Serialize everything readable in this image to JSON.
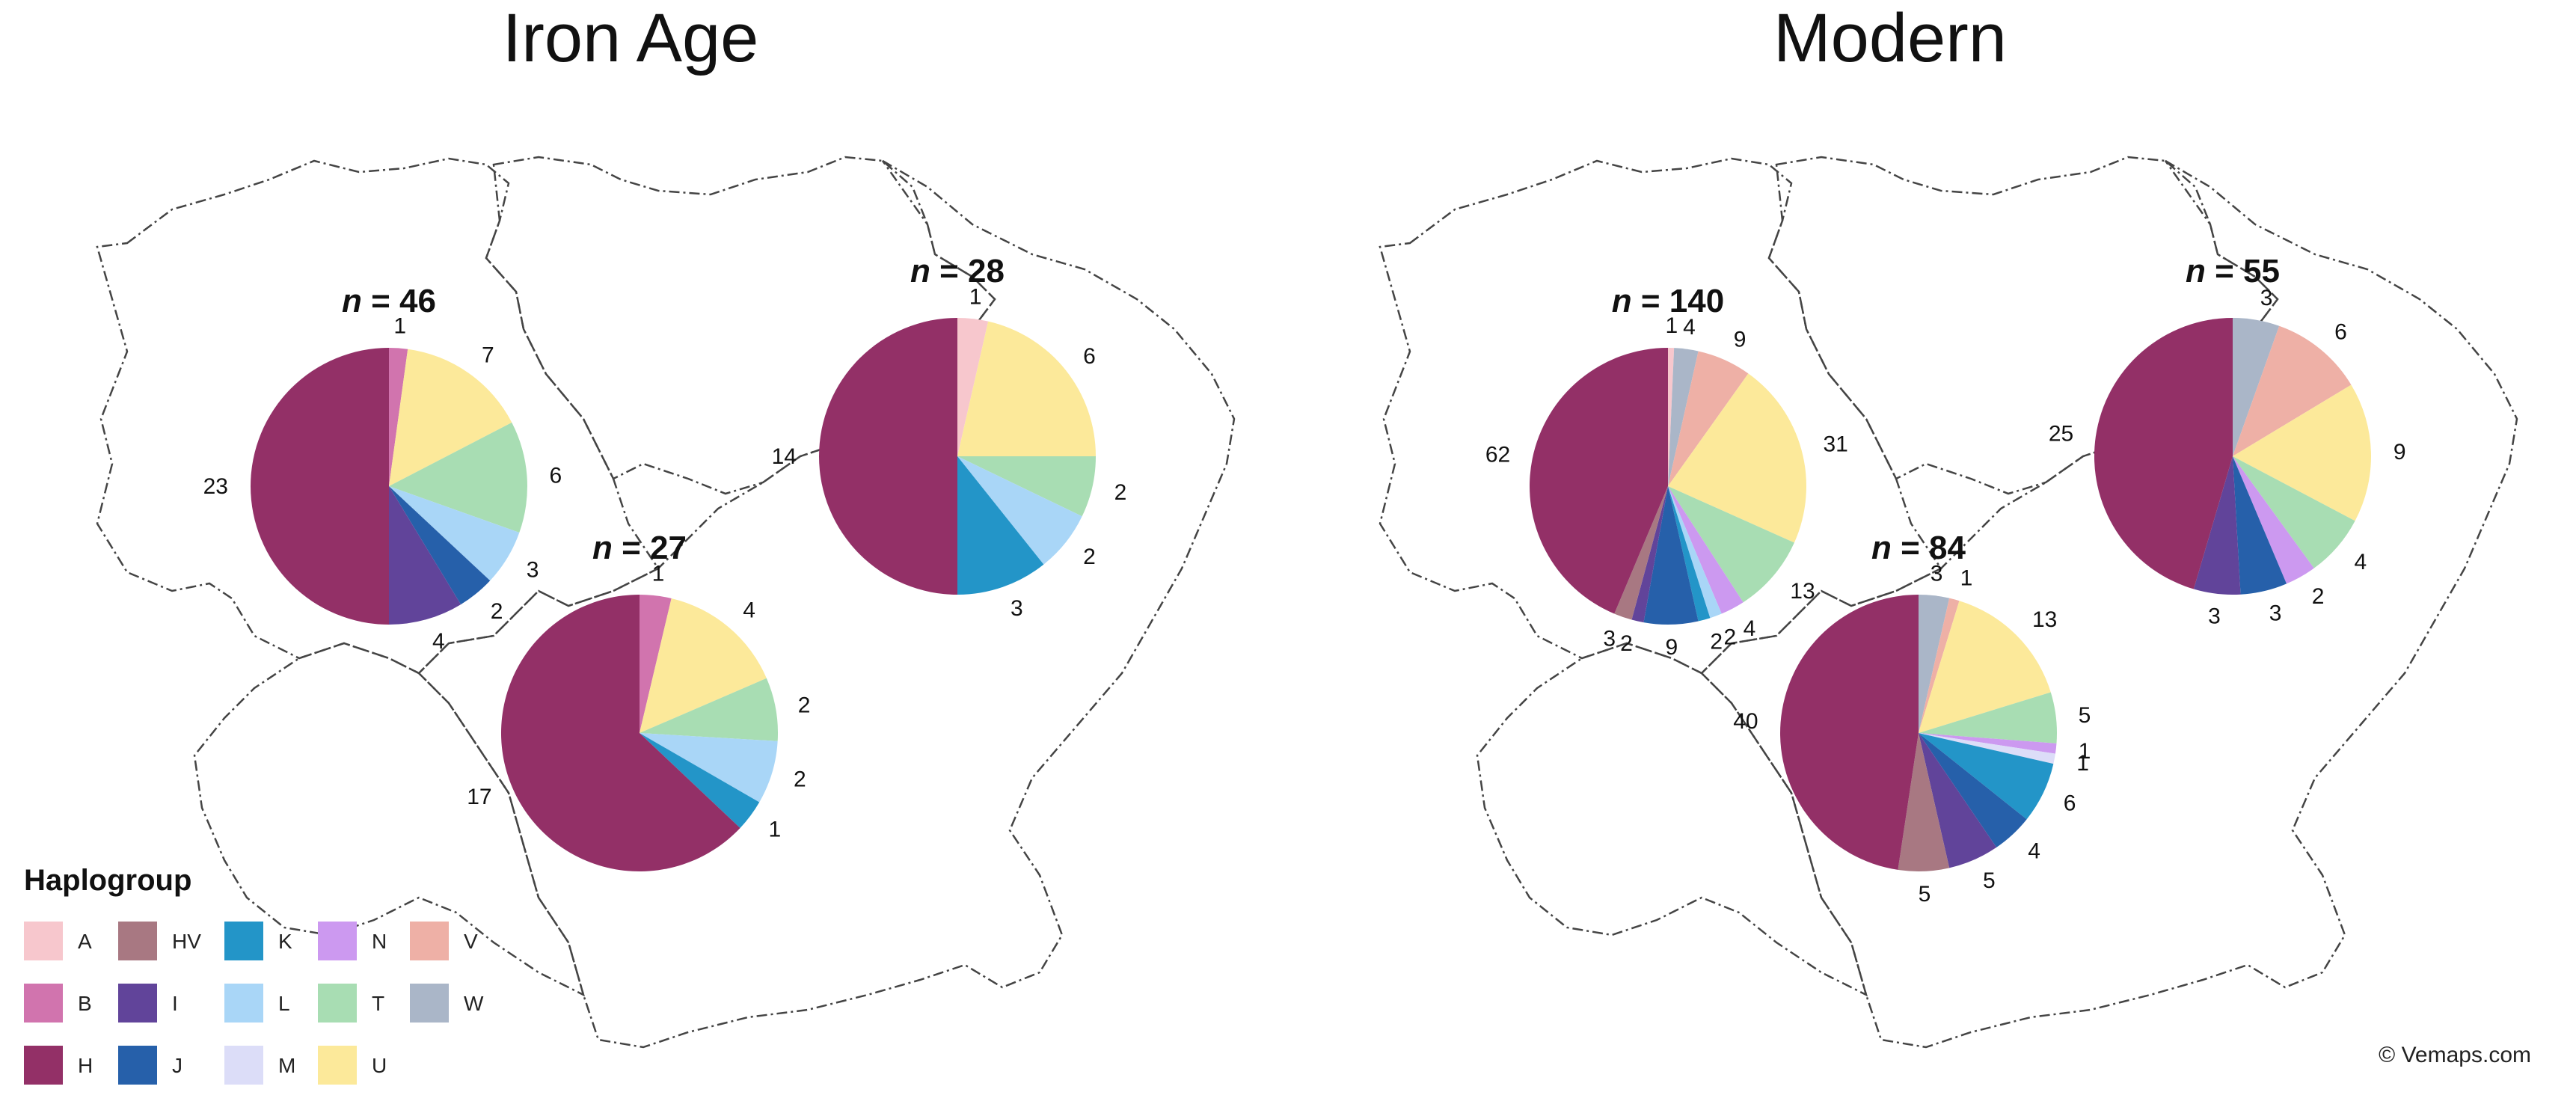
{
  "credit": "© Vemaps.com",
  "legend": {
    "title": "Haplogroup",
    "items": [
      {
        "key": "A",
        "color": "#F7C7CD"
      },
      {
        "key": "B",
        "color": "#D174AE"
      },
      {
        "key": "H",
        "color": "#933067"
      },
      {
        "key": "HV",
        "color": "#A87882"
      },
      {
        "key": "I",
        "color": "#61449A"
      },
      {
        "key": "J",
        "color": "#2660AA"
      },
      {
        "key": "K",
        "color": "#2395C8"
      },
      {
        "key": "L",
        "color": "#A9D6F7"
      },
      {
        "key": "M",
        "color": "#DCDDF8"
      },
      {
        "key": "N",
        "color": "#CC99F0"
      },
      {
        "key": "T",
        "color": "#A8DDB3"
      },
      {
        "key": "U",
        "color": "#FCE99A"
      },
      {
        "key": "V",
        "color": "#EEB0A6"
      },
      {
        "key": "W",
        "color": "#AAB6C8"
      }
    ]
  },
  "chart_data": [
    {
      "type": "pie",
      "title": "Iron Age",
      "pies": [
        {
          "n_label": "46",
          "slices": [
            {
              "group": "B",
              "value": 1
            },
            {
              "group": "U",
              "value": 7
            },
            {
              "group": "T",
              "value": 6
            },
            {
              "group": "L",
              "value": 3
            },
            {
              "group": "J",
              "value": 2
            },
            {
              "group": "I",
              "value": 4
            },
            {
              "group": "H",
              "value": 23
            }
          ]
        },
        {
          "n_label": "28",
          "slices": [
            {
              "group": "A",
              "value": 1
            },
            {
              "group": "U",
              "value": 6
            },
            {
              "group": "T",
              "value": 2
            },
            {
              "group": "L",
              "value": 2
            },
            {
              "group": "K",
              "value": 3
            },
            {
              "group": "H",
              "value": 14
            }
          ]
        },
        {
          "n_label": "27",
          "slices": [
            {
              "group": "B",
              "value": 1
            },
            {
              "group": "U",
              "value": 4
            },
            {
              "group": "T",
              "value": 2
            },
            {
              "group": "L",
              "value": 2
            },
            {
              "group": "K",
              "value": 1
            },
            {
              "group": "H",
              "value": 17
            }
          ]
        }
      ]
    },
    {
      "type": "pie",
      "title": "Modern",
      "pies": [
        {
          "n_label": "140",
          "slices": [
            {
              "group": "A",
              "value": 1
            },
            {
              "group": "W",
              "value": 4
            },
            {
              "group": "V",
              "value": 9
            },
            {
              "group": "U",
              "value": 31
            },
            {
              "group": "T",
              "value": 13
            },
            {
              "group": "N",
              "value": 4
            },
            {
              "group": "L",
              "value": 2
            },
            {
              "group": "K",
              "value": 2
            },
            {
              "group": "J",
              "value": 9
            },
            {
              "group": "I",
              "value": 2
            },
            {
              "group": "HV",
              "value": 3
            },
            {
              "group": "H",
              "value": 62
            }
          ]
        },
        {
          "n_label": "55",
          "slices": [
            {
              "group": "W",
              "value": 3
            },
            {
              "group": "V",
              "value": 6
            },
            {
              "group": "U",
              "value": 9
            },
            {
              "group": "T",
              "value": 4
            },
            {
              "group": "N",
              "value": 2
            },
            {
              "group": "J",
              "value": 3
            },
            {
              "group": "I",
              "value": 3
            },
            {
              "group": "H",
              "value": 25
            }
          ]
        },
        {
          "n_label": "84",
          "slices": [
            {
              "group": "W",
              "value": 3
            },
            {
              "group": "V",
              "value": 1
            },
            {
              "group": "U",
              "value": 13
            },
            {
              "group": "T",
              "value": 5
            },
            {
              "group": "N",
              "value": 1
            },
            {
              "group": "M",
              "value": 1
            },
            {
              "group": "K",
              "value": 6
            },
            {
              "group": "J",
              "value": 4
            },
            {
              "group": "I",
              "value": 5
            },
            {
              "group": "HV",
              "value": 5
            },
            {
              "group": "H",
              "value": 40
            }
          ]
        }
      ]
    }
  ]
}
